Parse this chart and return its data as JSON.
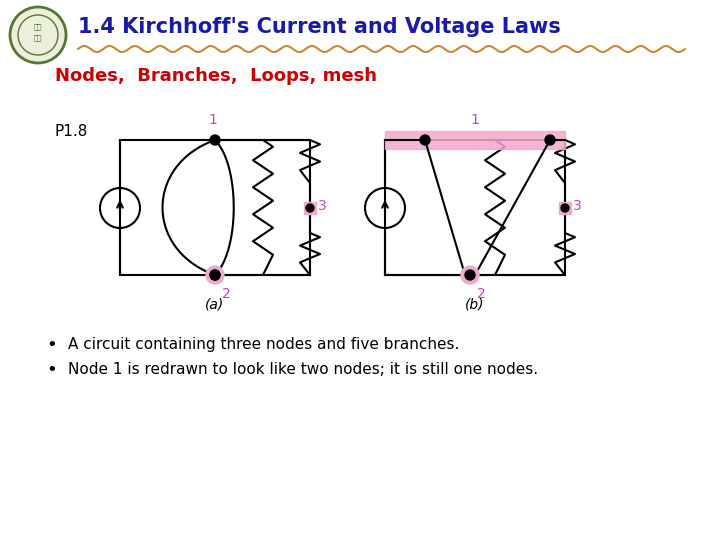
{
  "title": "1.4 Kirchhoff's Current and Voltage Laws",
  "subtitle": "Nodes,  Branches,  Loops, mesh",
  "label_p18": "P1.8",
  "label_a": "(a)",
  "label_b": "(b)",
  "bullet1": "A circuit containing three nodes and five branches.",
  "bullet2": "Node 1 is redrawn to look like two nodes; it is still one nodes.",
  "title_color": "#1a1aaa",
  "subtitle_color": "#cc0000",
  "node_color": "#cc44aa",
  "node_label_color": "#cc44aa",
  "highlight_color": "#f0aacc",
  "squiggle_color": "#cc8833",
  "bg_color": "#ffffff",
  "circuit_line_color": "#000000"
}
